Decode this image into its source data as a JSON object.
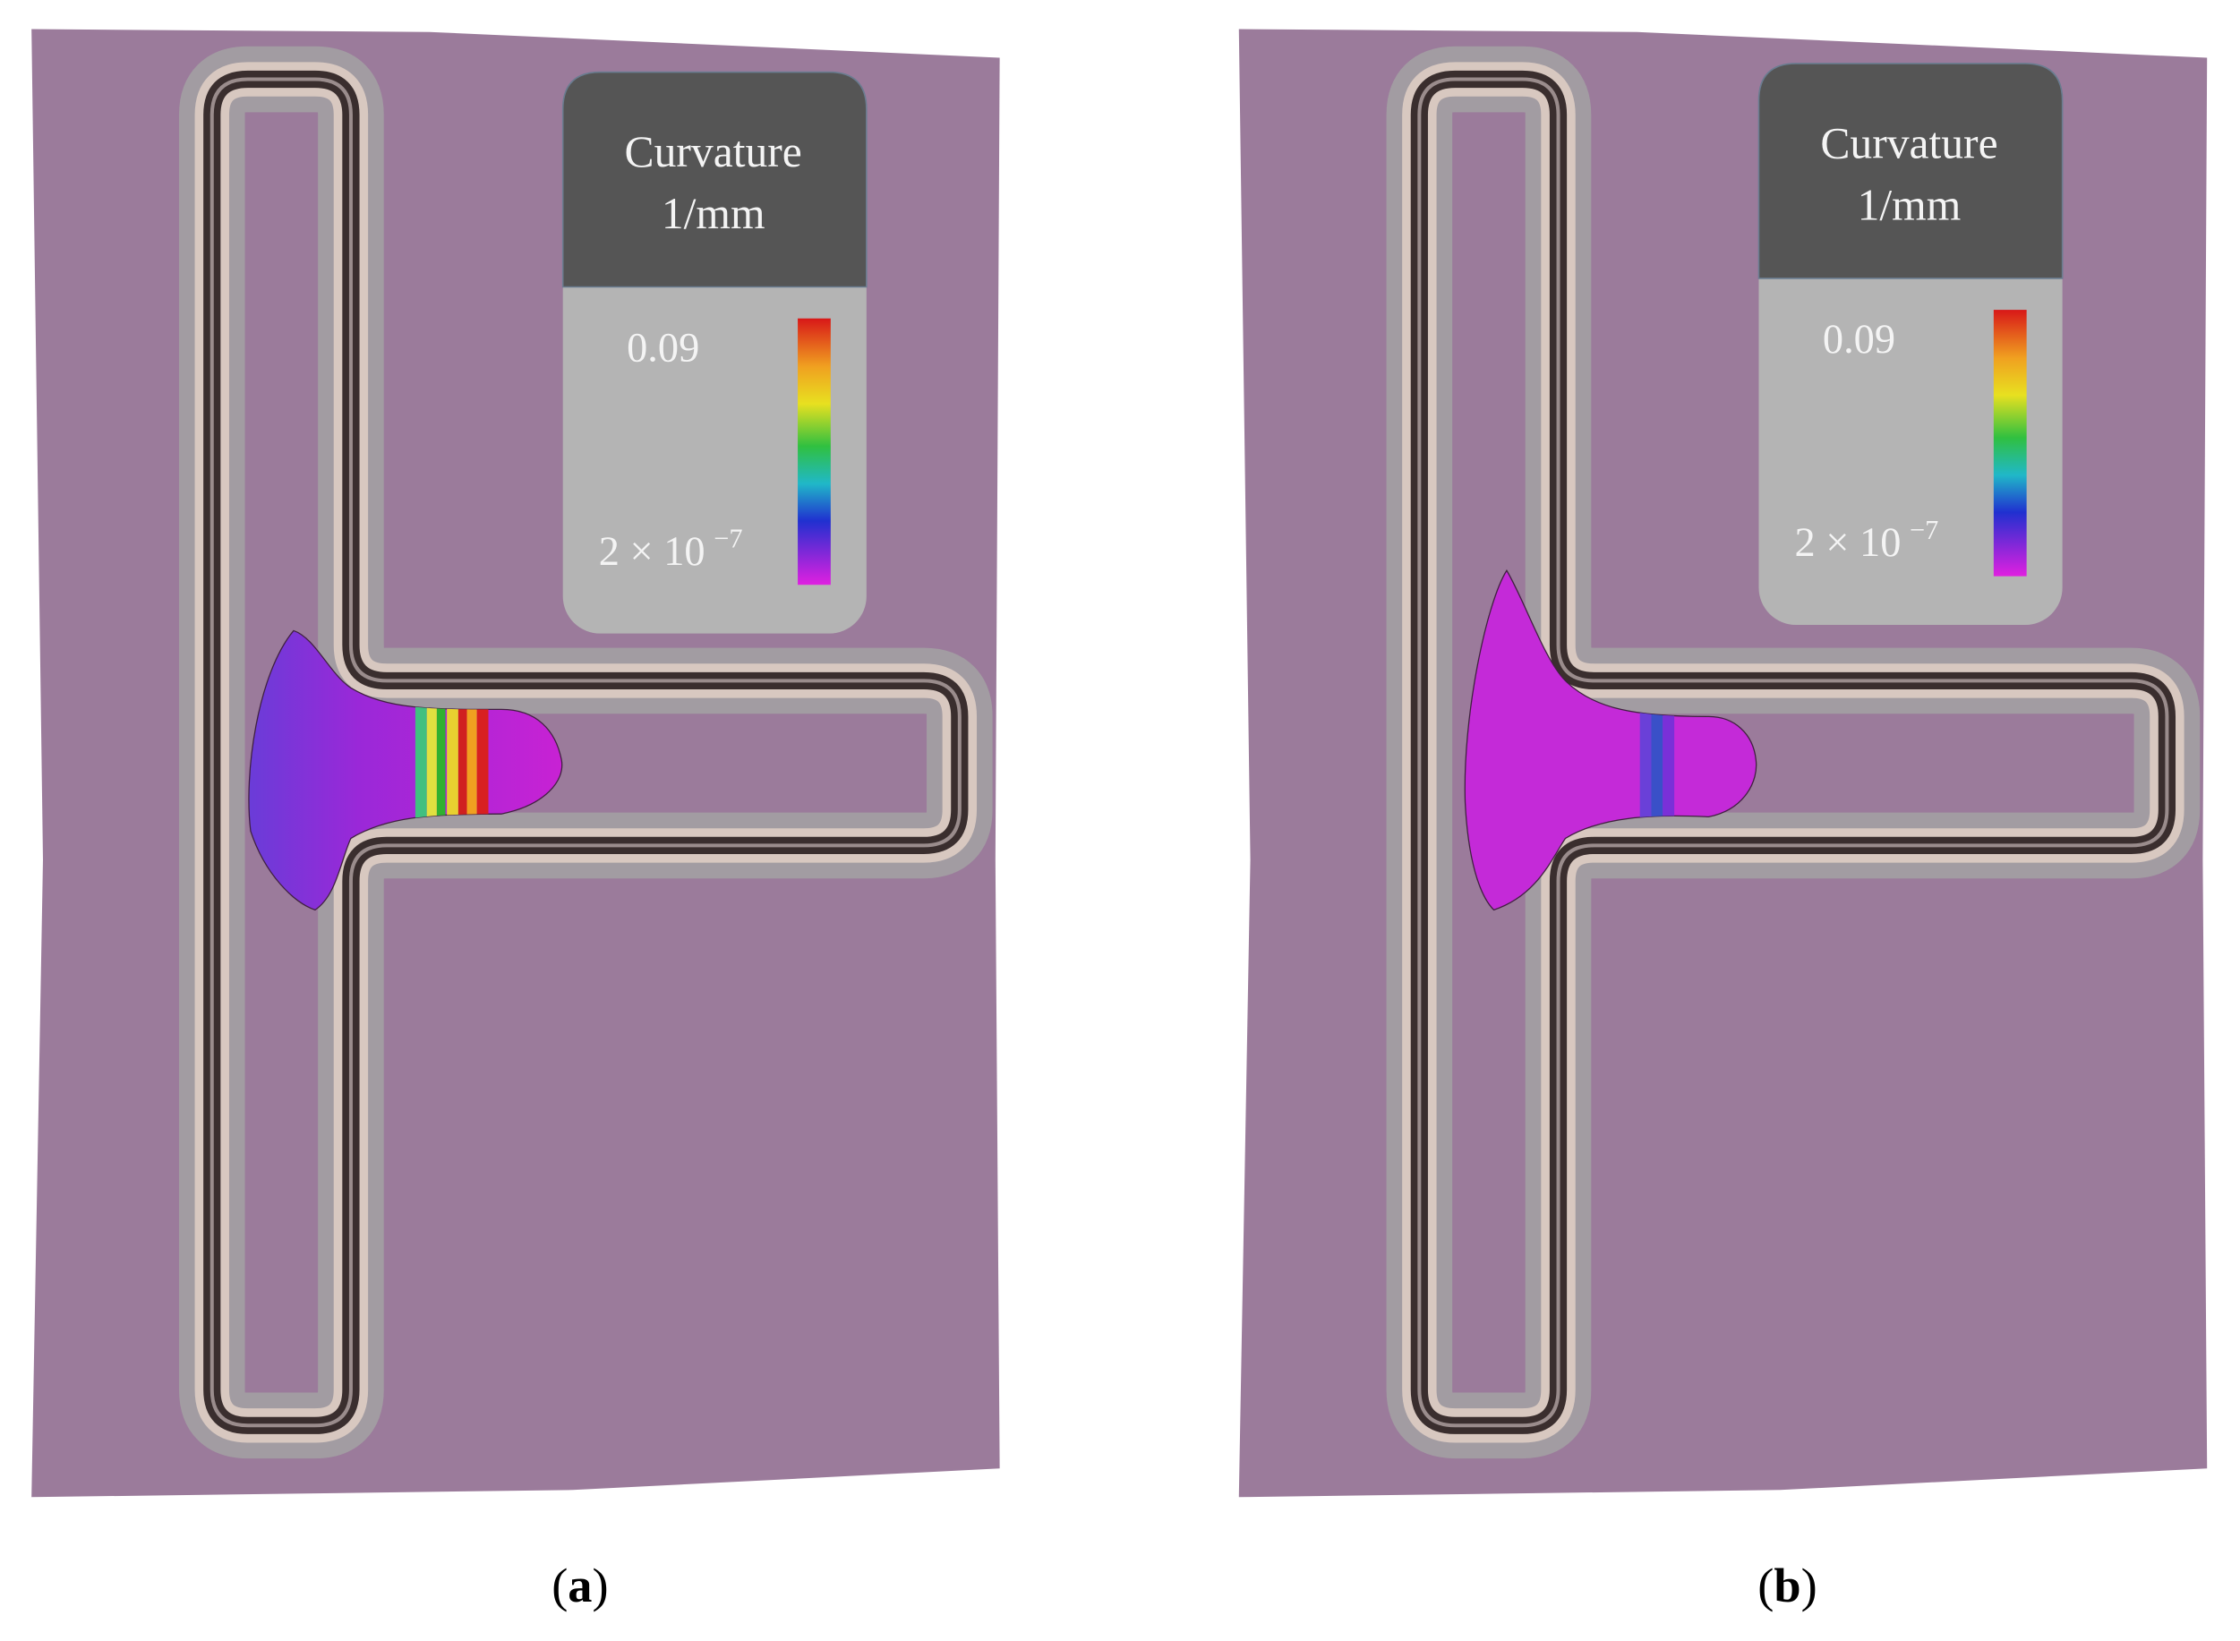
{
  "panels": [
    {
      "legend": {
        "title": "Curvature",
        "unit": "1/mm",
        "max_label": "0.09",
        "min_label": {
          "base": "2 × 10",
          "exponent": "−7"
        }
      },
      "caption": {
        "open": "(",
        "letter": "a",
        "close": ")"
      }
    },
    {
      "legend": {
        "title": "Curvature",
        "unit": "1/mm",
        "max_label": "0.09",
        "min_label": {
          "base": "2 × 10",
          "exponent": "−7"
        }
      },
      "caption": {
        "open": "(",
        "letter": "b",
        "close": ")"
      }
    }
  ]
}
